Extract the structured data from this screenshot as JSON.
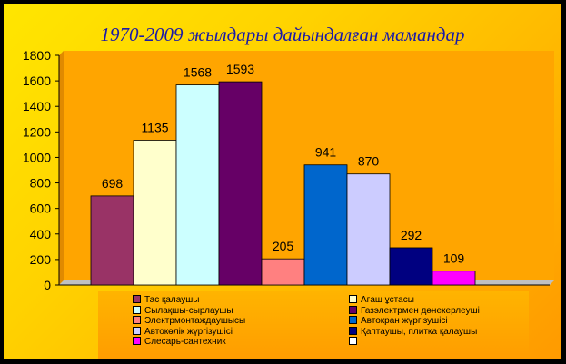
{
  "title": "1970-2009 жылдары  дайындалған  мамандар",
  "chart_data": {
    "type": "bar",
    "ylim": [
      0,
      1800
    ],
    "yticks": [
      0,
      200,
      400,
      600,
      800,
      1000,
      1200,
      1400,
      1600,
      1800
    ],
    "grid": false,
    "legend_position": "bottom",
    "series": [
      {
        "name": "Тас қалаушы",
        "value": 698,
        "color": "#993366"
      },
      {
        "name": "Ағаш  ұстасы",
        "value": 1135,
        "color": "#ffffcc"
      },
      {
        "name": "Сылақшы-сырлаушы",
        "value": 1568,
        "color": "#ccffff"
      },
      {
        "name": "Газэлектрмен дәнекерлеуші",
        "value": 1593,
        "color": "#660066"
      },
      {
        "name": "Электрмонтаждаушысы",
        "value": 205,
        "color": "#ff8080"
      },
      {
        "name": "Автокран жүргізушісі",
        "value": 941,
        "color": "#0066cc"
      },
      {
        "name": "Автокөлік жүргізушісі",
        "value": 870,
        "color": "#ccccff"
      },
      {
        "name": "Қаптаушы, плитка қалаушы",
        "value": 292,
        "color": "#000080"
      },
      {
        "name": "Слесарь-сантехник",
        "value": 109,
        "color": "#ff00ff"
      },
      {
        "name": "",
        "value": null,
        "color": "#ffffff"
      }
    ]
  }
}
